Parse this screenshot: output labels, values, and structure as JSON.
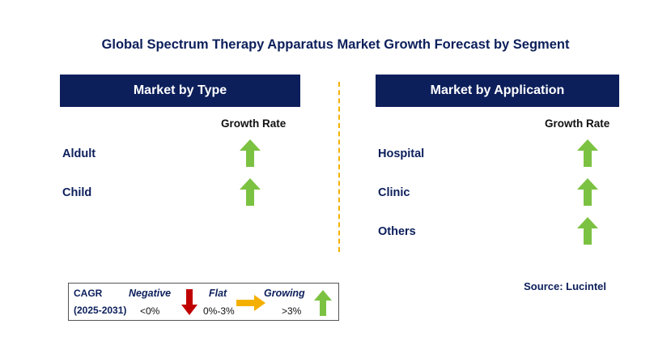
{
  "title": "Global Spectrum Therapy Apparatus Market Growth Forecast by Segment",
  "left_panel": {
    "header": "Market by Type",
    "column_header": "Growth Rate",
    "rows": [
      {
        "label": "Aldult",
        "trend": "growing"
      },
      {
        "label": "Child",
        "trend": "growing"
      }
    ]
  },
  "right_panel": {
    "header": "Market by Application",
    "column_header": "Growth Rate",
    "rows": [
      {
        "label": "Hospital",
        "trend": "growing"
      },
      {
        "label": "Clinic",
        "trend": "growing"
      },
      {
        "label": "Others",
        "trend": "growing"
      }
    ]
  },
  "legend": {
    "cagr_label": "CAGR",
    "period": "(2025-2031)",
    "negative_label": "Negative",
    "negative_range": "<0%",
    "flat_label": "Flat",
    "flat_range": "0%-3%",
    "growing_label": "Growing",
    "growing_range": ">3%"
  },
  "source": "Source: Lucintel",
  "colors": {
    "navy": "#0c1f5b",
    "growing_arrow": "#7cc242",
    "negative_arrow": "#c00000",
    "flat_arrow": "#f4b000",
    "divider": "#f4b000"
  },
  "icons": {
    "growing": "up-arrow-icon",
    "negative": "down-arrow-icon",
    "flat": "right-arrow-icon"
  }
}
